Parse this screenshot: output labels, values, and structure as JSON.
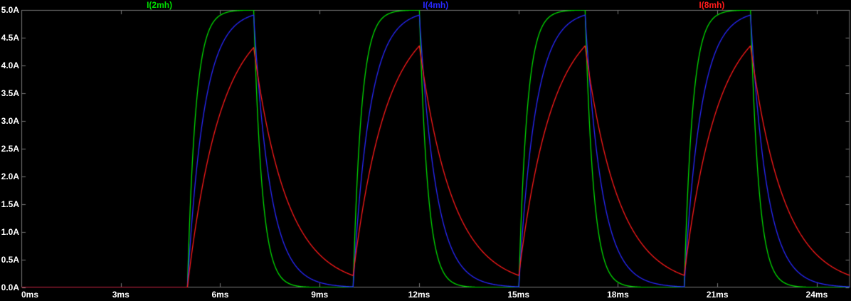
{
  "window": {
    "app": "waveform-viewer",
    "background": "#000000",
    "axis_text_color": "#ffffff",
    "border_color": "#7a7a7a"
  },
  "chart_data": {
    "type": "line",
    "title": "",
    "grid": false,
    "legend_position": "top",
    "x_axis": {
      "label": "",
      "unit": "ms",
      "min_ms": 0,
      "max_ms": 25,
      "tick_step_ms": 3,
      "tick_labels": [
        "0ms",
        "3ms",
        "6ms",
        "9ms",
        "12ms",
        "15ms",
        "18ms",
        "21ms",
        "24ms"
      ]
    },
    "y_axis": {
      "label": "",
      "unit": "A",
      "min_A": 0,
      "max_A": 5,
      "tick_step_A": 0.5,
      "tick_labels": [
        "5.0A",
        "4.5A",
        "4.0A",
        "3.5A",
        "3.0A",
        "2.5A",
        "2.0A",
        "1.5A",
        "1.0A",
        "0.5A",
        "0.0A"
      ]
    },
    "stimulus": {
      "shape": "pulse",
      "delay_ms": 5,
      "on_time_ms": 2,
      "period_ms": 5,
      "drive_amplitude_A": 5
    },
    "series": [
      {
        "name": "I(2mh)",
        "color": "#00dd00",
        "tau_ms": 0.25,
        "steady_peak_A": 5.0,
        "steady_valley_A": 0.0
      },
      {
        "name": "I(4mh)",
        "color": "#2828ff",
        "tau_ms": 0.5,
        "steady_peak_A": 4.91,
        "steady_valley_A": 0.01
      },
      {
        "name": "I(8mh)",
        "color": "#ff1a1a",
        "tau_ms": 1.0,
        "steady_peak_A": 4.33,
        "steady_valley_A": 0.22
      }
    ]
  }
}
